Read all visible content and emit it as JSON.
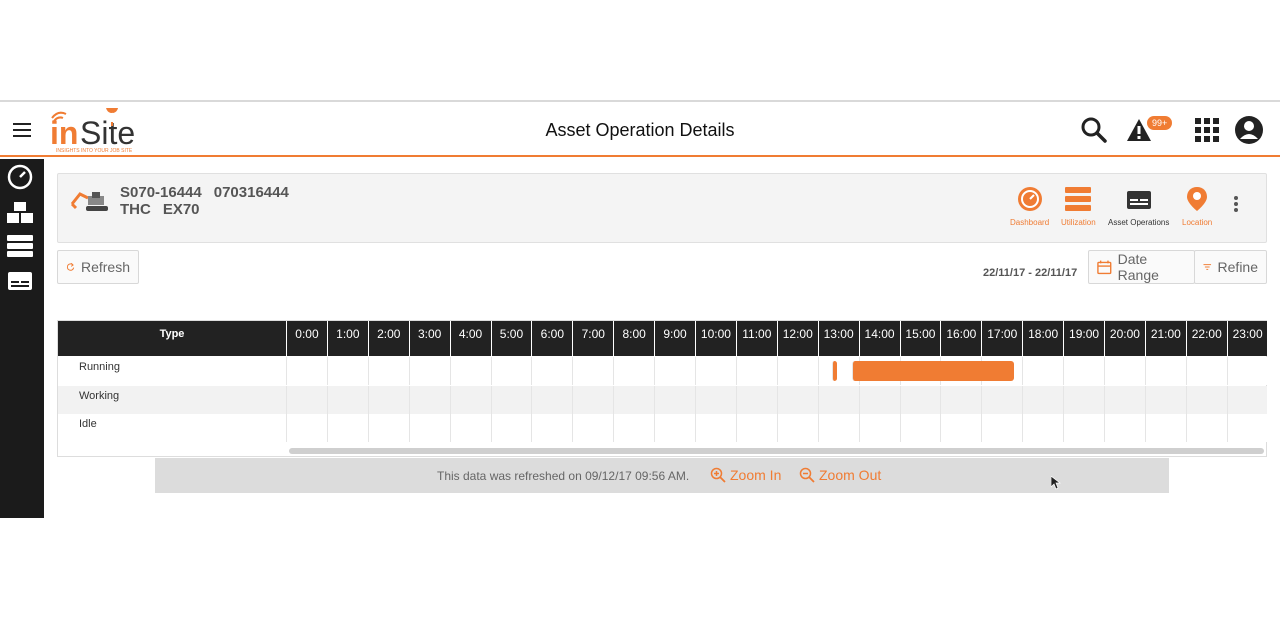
{
  "header": {
    "title": "Asset Operation Details",
    "logo_text": "inSite",
    "logo_tagline": "INSIGHTS INTO YOUR JOB SITE",
    "alert_badge": "99+"
  },
  "asset": {
    "serial": "S070-16444",
    "number": "070316444",
    "make": "THC",
    "model": "EX70"
  },
  "asset_nav": [
    {
      "label": "Dashboard"
    },
    {
      "label": "Utilization"
    },
    {
      "label": "Asset Operations"
    },
    {
      "label": "Location"
    }
  ],
  "toolbar": {
    "refresh_label": "Refresh",
    "date_range_label": "Date Range",
    "refine_label": "Refine",
    "date_range_value": "22/11/17 - 22/11/17"
  },
  "grid": {
    "type_header": "Type",
    "hours": [
      "0:00",
      "1:00",
      "2:00",
      "3:00",
      "4:00",
      "5:00",
      "6:00",
      "7:00",
      "8:00",
      "9:00",
      "10:00",
      "11:00",
      "12:00",
      "13:00",
      "14:00",
      "15:00",
      "16:00",
      "17:00",
      "18:00",
      "19:00",
      "20:00",
      "21:00",
      "22:00",
      "23:00"
    ],
    "rows": [
      {
        "label": "Running",
        "segments": [
          [
            13.35,
            13.45
          ],
          [
            13.85,
            17.8
          ]
        ]
      },
      {
        "label": "Working",
        "segments": []
      },
      {
        "label": "Idle",
        "segments": []
      }
    ]
  },
  "footer": {
    "refresh_message": "This data was refreshed on 09/12/17 09:56 AM.",
    "zoom_in_label": "Zoom In",
    "zoom_out_label": "Zoom Out"
  },
  "colors": {
    "accent": "#f07c33",
    "sidebar": "#1b1b1b",
    "grid_header": "#222222"
  }
}
